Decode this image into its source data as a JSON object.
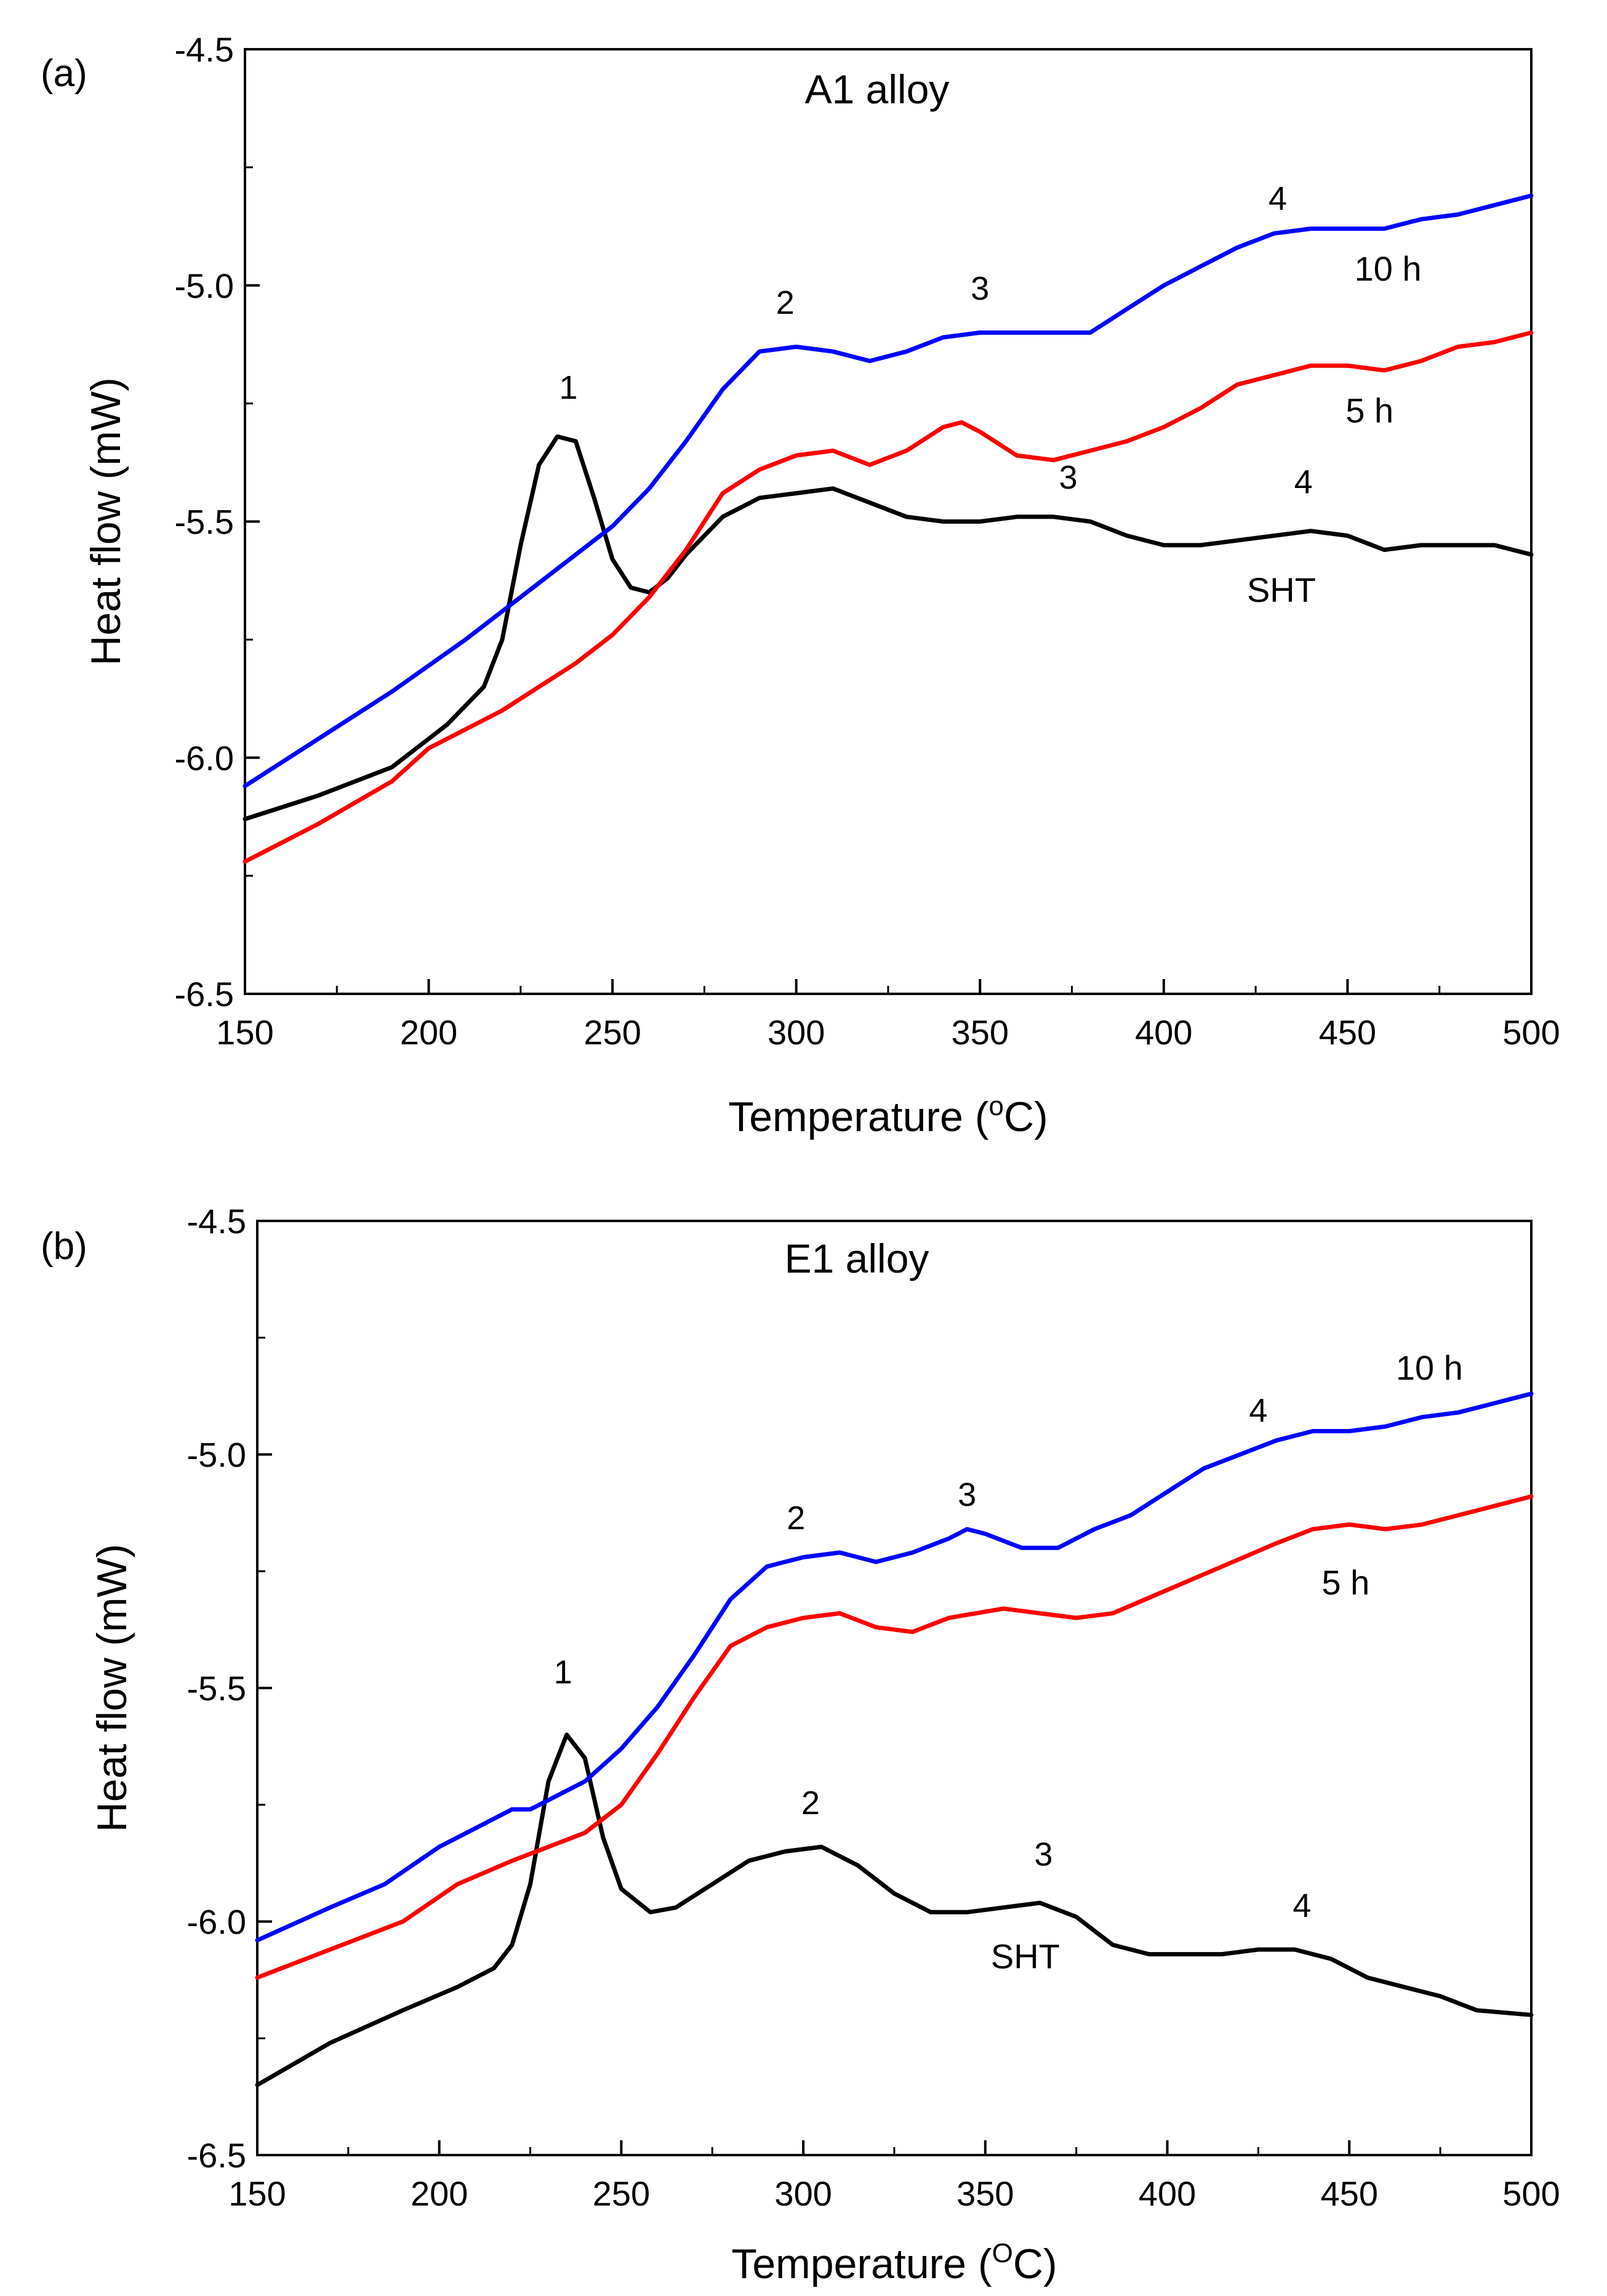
{
  "chart_data": [
    {
      "type": "line",
      "panel_label": "(a)",
      "title": "A1 alloy",
      "xlabel_main": "Temperature (",
      "xlabel_sup": "o",
      "xlabel_unit": "C)",
      "ylabel": "Heat flow (mW)",
      "xlim": [
        150,
        500
      ],
      "ylim": [
        -6.5,
        -4.5
      ],
      "xticks": [
        150,
        200,
        250,
        300,
        350,
        400,
        450,
        500
      ],
      "yticks": [
        -6.5,
        -6.0,
        -5.5,
        -5.0,
        -4.5
      ],
      "ytick_labels": [
        "-6.5",
        "-6.0",
        "-5.5",
        "-5.0",
        "-4.5"
      ],
      "series": [
        {
          "name": "SHT",
          "color": "#000000",
          "x": [
            150,
            170,
            190,
            205,
            215,
            220,
            225,
            230,
            235,
            240,
            245,
            250,
            255,
            260,
            265,
            270,
            280,
            290,
            300,
            310,
            320,
            330,
            340,
            350,
            360,
            370,
            380,
            390,
            400,
            410,
            420,
            430,
            440,
            450,
            460,
            470,
            480,
            490,
            500
          ],
          "y": [
            -6.13,
            -6.08,
            -6.02,
            -5.93,
            -5.85,
            -5.75,
            -5.55,
            -5.38,
            -5.32,
            -5.33,
            -5.45,
            -5.58,
            -5.64,
            -5.65,
            -5.62,
            -5.57,
            -5.49,
            -5.45,
            -5.44,
            -5.43,
            -5.46,
            -5.49,
            -5.5,
            -5.5,
            -5.49,
            -5.49,
            -5.5,
            -5.53,
            -5.55,
            -5.55,
            -5.54,
            -5.53,
            -5.52,
            -5.53,
            -5.56,
            -5.55,
            -5.55,
            -5.55,
            -5.57
          ]
        },
        {
          "name": "5 h",
          "color": "#ff0000",
          "x": [
            150,
            170,
            190,
            200,
            220,
            240,
            250,
            260,
            270,
            280,
            290,
            300,
            310,
            320,
            330,
            340,
            345,
            350,
            360,
            370,
            380,
            390,
            400,
            410,
            420,
            430,
            440,
            450,
            460,
            470,
            480,
            490,
            500
          ],
          "y": [
            -6.22,
            -6.14,
            -6.05,
            -5.98,
            -5.9,
            -5.8,
            -5.74,
            -5.66,
            -5.56,
            -5.44,
            -5.39,
            -5.36,
            -5.35,
            -5.38,
            -5.35,
            -5.3,
            -5.29,
            -5.31,
            -5.36,
            -5.37,
            -5.35,
            -5.33,
            -5.3,
            -5.26,
            -5.21,
            -5.19,
            -5.17,
            -5.17,
            -5.18,
            -5.16,
            -5.13,
            -5.12,
            -5.1
          ]
        },
        {
          "name": "10 h",
          "color": "#0000ff",
          "x": [
            150,
            170,
            190,
            210,
            230,
            250,
            260,
            270,
            280,
            290,
            300,
            310,
            320,
            330,
            340,
            350,
            360,
            370,
            380,
            390,
            400,
            410,
            420,
            430,
            440,
            450,
            460,
            470,
            480,
            490,
            500
          ],
          "y": [
            -6.06,
            -5.96,
            -5.86,
            -5.75,
            -5.63,
            -5.51,
            -5.43,
            -5.33,
            -5.22,
            -5.14,
            -5.13,
            -5.14,
            -5.16,
            -5.14,
            -5.11,
            -5.1,
            -5.1,
            -5.1,
            -5.1,
            -5.05,
            -5.0,
            -4.96,
            -4.92,
            -4.89,
            -4.88,
            -4.88,
            -4.88,
            -4.86,
            -4.85,
            -4.83,
            -4.81
          ]
        }
      ],
      "annotations": [
        {
          "text": "1",
          "x": 238,
          "y": -5.24
        },
        {
          "text": "2",
          "x": 297,
          "y": -5.06
        },
        {
          "text": "3",
          "x": 350,
          "y": -5.03
        },
        {
          "text": "4",
          "x": 431,
          "y": -4.84
        },
        {
          "text": "3",
          "x": 374,
          "y": -5.43
        },
        {
          "text": "4",
          "x": 438,
          "y": -5.44
        }
      ],
      "series_labels": [
        {
          "text": "10 h",
          "x": 461,
          "y": -4.99
        },
        {
          "text": "5 h",
          "x": 456,
          "y": -5.29
        },
        {
          "text": "SHT",
          "x": 432,
          "y": -5.67
        }
      ]
    },
    {
      "type": "line",
      "panel_label": "(b)",
      "title": "E1 alloy",
      "xlabel_main": "Temperature (",
      "xlabel_sup": "O",
      "xlabel_unit": "C)",
      "ylabel": "Heat flow (mW)",
      "xlim": [
        150,
        500
      ],
      "ylim": [
        -6.5,
        -4.5
      ],
      "xticks": [
        150,
        200,
        250,
        300,
        350,
        400,
        450,
        500
      ],
      "yticks": [
        -6.5,
        -6.0,
        -5.5,
        -5.0,
        -4.5
      ],
      "ytick_labels": [
        "-6.5",
        "-6.0",
        "-5.5",
        "-5.0",
        "-4.5"
      ],
      "series": [
        {
          "name": "SHT",
          "color": "#000000",
          "x": [
            150,
            170,
            190,
            205,
            215,
            220,
            225,
            230,
            235,
            240,
            245,
            250,
            258,
            265,
            275,
            285,
            295,
            305,
            315,
            325,
            335,
            345,
            355,
            365,
            375,
            385,
            395,
            405,
            415,
            425,
            435,
            445,
            455,
            465,
            475,
            485,
            500
          ],
          "y": [
            -6.35,
            -6.26,
            -6.19,
            -6.14,
            -6.1,
            -6.05,
            -5.92,
            -5.7,
            -5.6,
            -5.65,
            -5.82,
            -5.93,
            -5.98,
            -5.97,
            -5.92,
            -5.87,
            -5.85,
            -5.84,
            -5.88,
            -5.94,
            -5.98,
            -5.98,
            -5.97,
            -5.96,
            -5.99,
            -6.05,
            -6.07,
            -6.07,
            -6.07,
            -6.06,
            -6.06,
            -6.08,
            -6.12,
            -6.14,
            -6.16,
            -6.19,
            -6.2
          ]
        },
        {
          "name": "5 h",
          "color": "#ff0000",
          "x": [
            150,
            170,
            190,
            205,
            220,
            240,
            250,
            260,
            270,
            280,
            290,
            300,
            310,
            320,
            330,
            340,
            355,
            365,
            375,
            385,
            400,
            415,
            430,
            440,
            450,
            460,
            470,
            485,
            500
          ],
          "y": [
            -6.12,
            -6.06,
            -6.0,
            -5.92,
            -5.87,
            -5.81,
            -5.75,
            -5.64,
            -5.52,
            -5.41,
            -5.37,
            -5.35,
            -5.34,
            -5.37,
            -5.38,
            -5.35,
            -5.33,
            -5.34,
            -5.35,
            -5.34,
            -5.29,
            -5.24,
            -5.19,
            -5.16,
            -5.15,
            -5.16,
            -5.15,
            -5.12,
            -5.09
          ]
        },
        {
          "name": "10 h",
          "color": "#0000ff",
          "x": [
            150,
            170,
            185,
            200,
            215,
            220,
            225,
            240,
            250,
            260,
            270,
            280,
            290,
            300,
            310,
            320,
            330,
            340,
            345,
            350,
            360,
            370,
            380,
            390,
            400,
            410,
            420,
            430,
            440,
            450,
            460,
            470,
            480,
            490,
            500
          ],
          "y": [
            -6.04,
            -5.97,
            -5.92,
            -5.84,
            -5.78,
            -5.76,
            -5.76,
            -5.7,
            -5.63,
            -5.54,
            -5.43,
            -5.31,
            -5.24,
            -5.22,
            -5.21,
            -5.23,
            -5.21,
            -5.18,
            -5.16,
            -5.17,
            -5.2,
            -5.2,
            -5.16,
            -5.13,
            -5.08,
            -5.03,
            -5.0,
            -4.97,
            -4.95,
            -4.95,
            -4.94,
            -4.92,
            -4.91,
            -4.89,
            -4.87
          ]
        }
      ],
      "annotations": [
        {
          "text": "1",
          "x": 234,
          "y": -5.49
        },
        {
          "text": "2",
          "x": 298,
          "y": -5.16
        },
        {
          "text": "3",
          "x": 345,
          "y": -5.11
        },
        {
          "text": "4",
          "x": 425,
          "y": -4.93
        },
        {
          "text": "2",
          "x": 302,
          "y": -5.77
        },
        {
          "text": "3",
          "x": 366,
          "y": -5.88
        },
        {
          "text": "4",
          "x": 437,
          "y": -5.99
        }
      ],
      "series_labels": [
        {
          "text": "10 h",
          "x": 472,
          "y": -4.84
        },
        {
          "text": "5 h",
          "x": 449,
          "y": -5.3
        },
        {
          "text": "SHT",
          "x": 361,
          "y": -6.1
        }
      ]
    }
  ]
}
